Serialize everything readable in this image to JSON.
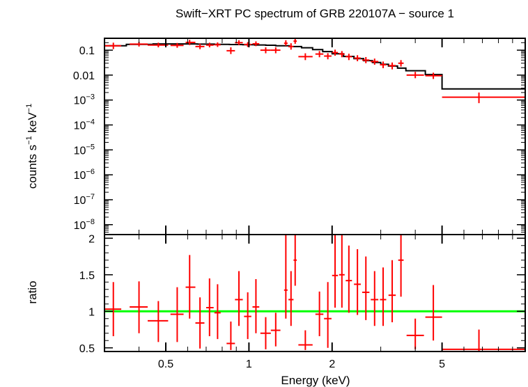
{
  "chart_data": {
    "title": "Swift−XRT PC spectrum of GRB 220107A − source 1",
    "xlabel": "Energy (keV)",
    "x_scale": "log",
    "xlim": [
      0.3,
      10
    ],
    "x_ticks": [
      {
        "value": 0.5,
        "label": "0.5"
      },
      {
        "value": 1,
        "label": "1"
      },
      {
        "value": 2,
        "label": "2"
      },
      {
        "value": 5,
        "label": "5"
      }
    ],
    "colors": {
      "data": "#ff0000",
      "model": "#000000",
      "unity": "#00ff00",
      "frame": "#000000"
    },
    "panels": [
      {
        "name": "spectrum",
        "type": "scatter",
        "ylabel_text": "counts s",
        "ylabel_exp1": "−1",
        "ylabel_mid": " keV",
        "ylabel_exp2": "−1",
        "y_scale": "log",
        "ylim": [
          4e-09,
          0.3
        ],
        "y_ticks": [
          {
            "value": 0.1,
            "label": "0.1"
          },
          {
            "value": 0.01,
            "label": "0.01"
          },
          {
            "value": 0.001,
            "base": "10",
            "exp": "−3"
          },
          {
            "value": 0.0001,
            "base": "10",
            "exp": "−4"
          },
          {
            "value": 1e-05,
            "base": "10",
            "exp": "−5"
          },
          {
            "value": 1e-06,
            "base": "10",
            "exp": "−6"
          },
          {
            "value": 1e-07,
            "base": "10",
            "exp": "−7"
          },
          {
            "value": 1e-08,
            "base": "10",
            "exp": "−8"
          }
        ],
        "data": [
          {
            "x": 0.323,
            "xlo": 0.3,
            "xhi": 0.345,
            "y": 0.15,
            "ylo": 0.11,
            "yhi": 0.2
          },
          {
            "x": 0.4,
            "xlo": 0.37,
            "xhi": 0.43,
            "y": 0.175,
            "ylo": 0.14,
            "yhi": 0.215
          },
          {
            "x": 0.47,
            "xlo": 0.43,
            "xhi": 0.51,
            "y": 0.16,
            "ylo": 0.13,
            "yhi": 0.2
          },
          {
            "x": 0.55,
            "xlo": 0.52,
            "xhi": 0.58,
            "y": 0.155,
            "ylo": 0.125,
            "yhi": 0.195
          },
          {
            "x": 0.61,
            "xlo": 0.59,
            "xhi": 0.64,
            "y": 0.205,
            "ylo": 0.16,
            "yhi": 0.26
          },
          {
            "x": 0.665,
            "xlo": 0.64,
            "xhi": 0.69,
            "y": 0.14,
            "ylo": 0.11,
            "yhi": 0.18
          },
          {
            "x": 0.72,
            "xlo": 0.7,
            "xhi": 0.745,
            "y": 0.16,
            "ylo": 0.13,
            "yhi": 0.2
          },
          {
            "x": 0.77,
            "xlo": 0.75,
            "xhi": 0.79,
            "y": 0.165,
            "ylo": 0.135,
            "yhi": 0.205
          },
          {
            "x": 0.86,
            "xlo": 0.83,
            "xhi": 0.89,
            "y": 0.095,
            "ylo": 0.07,
            "yhi": 0.13
          },
          {
            "x": 0.92,
            "xlo": 0.89,
            "xhi": 0.95,
            "y": 0.2,
            "ylo": 0.16,
            "yhi": 0.25
          },
          {
            "x": 0.99,
            "xlo": 0.96,
            "xhi": 1.02,
            "y": 0.17,
            "ylo": 0.135,
            "yhi": 0.21
          },
          {
            "x": 1.06,
            "xlo": 1.03,
            "xhi": 1.09,
            "y": 0.18,
            "ylo": 0.145,
            "yhi": 0.225
          },
          {
            "x": 1.15,
            "xlo": 1.1,
            "xhi": 1.2,
            "y": 0.1,
            "ylo": 0.075,
            "yhi": 0.13
          },
          {
            "x": 1.25,
            "xlo": 1.2,
            "xhi": 1.3,
            "y": 0.1,
            "ylo": 0.075,
            "yhi": 0.13
          },
          {
            "x": 1.36,
            "xlo": 1.34,
            "xhi": 1.38,
            "y": 0.19,
            "ylo": 0.15,
            "yhi": 0.25
          },
          {
            "x": 1.42,
            "xlo": 1.39,
            "xhi": 1.45,
            "y": 0.14,
            "ylo": 0.105,
            "yhi": 0.19
          },
          {
            "x": 1.47,
            "xlo": 1.45,
            "xhi": 1.49,
            "y": 0.23,
            "ylo": 0.18,
            "yhi": 0.29
          },
          {
            "x": 1.6,
            "xlo": 1.51,
            "xhi": 1.7,
            "y": 0.055,
            "ylo": 0.04,
            "yhi": 0.075
          },
          {
            "x": 1.8,
            "xlo": 1.74,
            "xhi": 1.86,
            "y": 0.07,
            "ylo": 0.052,
            "yhi": 0.092
          },
          {
            "x": 1.93,
            "xlo": 1.87,
            "xhi": 1.99,
            "y": 0.058,
            "ylo": 0.043,
            "yhi": 0.076
          },
          {
            "x": 2.05,
            "xlo": 2.0,
            "xhi": 2.1,
            "y": 0.08,
            "ylo": 0.06,
            "yhi": 0.105
          },
          {
            "x": 2.17,
            "xlo": 2.12,
            "xhi": 2.22,
            "y": 0.07,
            "ylo": 0.052,
            "yhi": 0.092
          },
          {
            "x": 2.3,
            "xlo": 2.24,
            "xhi": 2.36,
            "y": 0.055,
            "ylo": 0.04,
            "yhi": 0.072
          },
          {
            "x": 2.47,
            "xlo": 2.4,
            "xhi": 2.54,
            "y": 0.048,
            "ylo": 0.036,
            "yhi": 0.063
          },
          {
            "x": 2.65,
            "xlo": 2.57,
            "xhi": 2.73,
            "y": 0.04,
            "ylo": 0.03,
            "yhi": 0.053
          },
          {
            "x": 2.85,
            "xlo": 2.76,
            "xhi": 2.94,
            "y": 0.035,
            "ylo": 0.026,
            "yhi": 0.046
          },
          {
            "x": 3.06,
            "xlo": 2.98,
            "xhi": 3.14,
            "y": 0.026,
            "ylo": 0.019,
            "yhi": 0.035
          },
          {
            "x": 3.3,
            "xlo": 3.2,
            "xhi": 3.4,
            "y": 0.024,
            "ylo": 0.017,
            "yhi": 0.032
          },
          {
            "x": 3.55,
            "xlo": 3.47,
            "xhi": 3.63,
            "y": 0.03,
            "ylo": 0.022,
            "yhi": 0.04
          },
          {
            "x": 4.0,
            "xlo": 3.72,
            "xhi": 4.3,
            "y": 0.01,
            "ylo": 0.0075,
            "yhi": 0.0135
          },
          {
            "x": 4.65,
            "xlo": 4.35,
            "xhi": 5.0,
            "y": 0.0095,
            "ylo": 0.007,
            "yhi": 0.0125
          },
          {
            "x": 6.8,
            "xlo": 5.0,
            "xhi": 10.0,
            "y": 0.0013,
            "ylo": 0.00075,
            "yhi": 0.002
          }
        ],
        "model": [
          {
            "x": 0.3,
            "y": 0.15
          },
          {
            "x": 0.36,
            "y": 0.17
          },
          {
            "x": 0.45,
            "y": 0.178
          },
          {
            "x": 0.55,
            "y": 0.178
          },
          {
            "x": 0.65,
            "y": 0.175
          },
          {
            "x": 0.75,
            "y": 0.172
          },
          {
            "x": 0.85,
            "y": 0.168
          },
          {
            "x": 0.95,
            "y": 0.165
          },
          {
            "x": 1.05,
            "y": 0.162
          },
          {
            "x": 1.15,
            "y": 0.158
          },
          {
            "x": 1.25,
            "y": 0.15
          },
          {
            "x": 1.4,
            "y": 0.14
          },
          {
            "x": 1.55,
            "y": 0.125
          },
          {
            "x": 1.7,
            "y": 0.105
          },
          {
            "x": 1.85,
            "y": 0.088
          },
          {
            "x": 2.0,
            "y": 0.072
          },
          {
            "x": 2.2,
            "y": 0.056
          },
          {
            "x": 2.4,
            "y": 0.046
          },
          {
            "x": 2.6,
            "y": 0.038
          },
          {
            "x": 2.8,
            "y": 0.032
          },
          {
            "x": 3.0,
            "y": 0.027
          },
          {
            "x": 3.2,
            "y": 0.023
          },
          {
            "x": 3.45,
            "y": 0.019
          },
          {
            "x": 3.7,
            "y": 0.015
          },
          {
            "x": 4.35,
            "y": 0.0105
          },
          {
            "x": 5.0,
            "y": 0.0028
          },
          {
            "x": 10.0,
            "y": 0.0028
          }
        ]
      },
      {
        "name": "ratio",
        "type": "scatter",
        "ylabel_text": "ratio",
        "y_scale": "linear",
        "ylim": [
          0.45,
          2.05
        ],
        "y_ticks": [
          {
            "value": 0.5,
            "label": "0.5"
          },
          {
            "value": 1,
            "label": "1"
          },
          {
            "value": 1.5,
            "label": "1.5"
          },
          {
            "value": 2,
            "label": "2"
          }
        ],
        "unity": 1,
        "data": [
          {
            "x": 0.323,
            "xlo": 0.3,
            "xhi": 0.345,
            "y": 1.03,
            "ylo": 0.66,
            "yhi": 1.4
          },
          {
            "x": 0.4,
            "xlo": 0.37,
            "xhi": 0.43,
            "y": 1.06,
            "ylo": 0.7,
            "yhi": 1.41
          },
          {
            "x": 0.47,
            "xlo": 0.43,
            "xhi": 0.51,
            "y": 0.87,
            "ylo": 0.58,
            "yhi": 1.14
          },
          {
            "x": 0.55,
            "xlo": 0.52,
            "xhi": 0.58,
            "y": 0.96,
            "ylo": 0.58,
            "yhi": 1.33
          },
          {
            "x": 0.61,
            "xlo": 0.59,
            "xhi": 0.64,
            "y": 1.33,
            "ylo": 0.9,
            "yhi": 1.77
          },
          {
            "x": 0.665,
            "xlo": 0.64,
            "xhi": 0.69,
            "y": 0.84,
            "ylo": 0.49,
            "yhi": 1.19
          },
          {
            "x": 0.72,
            "xlo": 0.7,
            "xhi": 0.745,
            "y": 1.05,
            "ylo": 0.66,
            "yhi": 1.45
          },
          {
            "x": 0.77,
            "xlo": 0.75,
            "xhi": 0.79,
            "y": 0.98,
            "ylo": 0.62,
            "yhi": 1.37
          },
          {
            "x": 0.86,
            "xlo": 0.83,
            "xhi": 0.89,
            "y": 0.56,
            "ylo": 0.47,
            "yhi": 0.86
          },
          {
            "x": 0.92,
            "xlo": 0.89,
            "xhi": 0.95,
            "y": 1.16,
            "ylo": 0.8,
            "yhi": 1.55
          },
          {
            "x": 0.99,
            "xlo": 0.96,
            "xhi": 1.02,
            "y": 0.93,
            "ylo": 0.62,
            "yhi": 1.26
          },
          {
            "x": 1.06,
            "xlo": 1.03,
            "xhi": 1.09,
            "y": 1.06,
            "ylo": 0.7,
            "yhi": 1.44
          },
          {
            "x": 1.15,
            "xlo": 1.1,
            "xhi": 1.2,
            "y": 0.7,
            "ylo": 0.48,
            "yhi": 0.92
          },
          {
            "x": 1.25,
            "xlo": 1.2,
            "xhi": 1.3,
            "y": 0.74,
            "ylo": 0.52,
            "yhi": 0.98
          },
          {
            "x": 1.36,
            "xlo": 1.34,
            "xhi": 1.38,
            "y": 1.29,
            "ylo": 0.9,
            "yhi": 2.05
          },
          {
            "x": 1.42,
            "xlo": 1.39,
            "xhi": 1.45,
            "y": 1.16,
            "ylo": 0.8,
            "yhi": 1.55
          },
          {
            "x": 1.47,
            "xlo": 1.45,
            "xhi": 1.49,
            "y": 1.7,
            "ylo": 1.35,
            "yhi": 2.05
          },
          {
            "x": 1.6,
            "xlo": 1.51,
            "xhi": 1.7,
            "y": 0.54,
            "ylo": 0.47,
            "yhi": 0.74
          },
          {
            "x": 1.8,
            "xlo": 1.74,
            "xhi": 1.86,
            "y": 0.96,
            "ylo": 0.66,
            "yhi": 1.27
          },
          {
            "x": 1.93,
            "xlo": 1.87,
            "xhi": 1.99,
            "y": 0.9,
            "ylo": 0.5,
            "yhi": 1.4
          },
          {
            "x": 2.05,
            "xlo": 2.0,
            "xhi": 2.1,
            "y": 1.49,
            "ylo": 1.05,
            "yhi": 2.05
          },
          {
            "x": 2.17,
            "xlo": 2.12,
            "xhi": 2.22,
            "y": 1.5,
            "ylo": 1.05,
            "yhi": 2.05
          },
          {
            "x": 2.3,
            "xlo": 2.24,
            "xhi": 2.36,
            "y": 1.42,
            "ylo": 0.98,
            "yhi": 1.9
          },
          {
            "x": 2.47,
            "xlo": 2.4,
            "xhi": 2.54,
            "y": 1.37,
            "ylo": 0.95,
            "yhi": 1.85
          },
          {
            "x": 2.65,
            "xlo": 2.57,
            "xhi": 2.73,
            "y": 1.26,
            "ylo": 0.88,
            "yhi": 1.75
          },
          {
            "x": 2.85,
            "xlo": 2.76,
            "xhi": 2.94,
            "y": 1.16,
            "ylo": 0.8,
            "yhi": 1.55
          },
          {
            "x": 3.06,
            "xlo": 2.98,
            "xhi": 3.14,
            "y": 1.16,
            "ylo": 0.8,
            "yhi": 1.6
          },
          {
            "x": 3.3,
            "xlo": 3.2,
            "xhi": 3.4,
            "y": 1.22,
            "ylo": 0.85,
            "yhi": 1.7
          },
          {
            "x": 3.55,
            "xlo": 3.47,
            "xhi": 3.63,
            "y": 1.7,
            "ylo": 1.2,
            "yhi": 2.05
          },
          {
            "x": 4.0,
            "xlo": 3.72,
            "xhi": 4.3,
            "y": 0.67,
            "ylo": 0.48,
            "yhi": 0.9
          },
          {
            "x": 4.65,
            "xlo": 4.35,
            "xhi": 5.0,
            "y": 0.92,
            "ylo": 0.6,
            "yhi": 1.36
          },
          {
            "x": 6.8,
            "xlo": 5.0,
            "xhi": 10.0,
            "y": 0.48,
            "ylo": 0.45,
            "yhi": 0.75
          }
        ]
      }
    ]
  }
}
